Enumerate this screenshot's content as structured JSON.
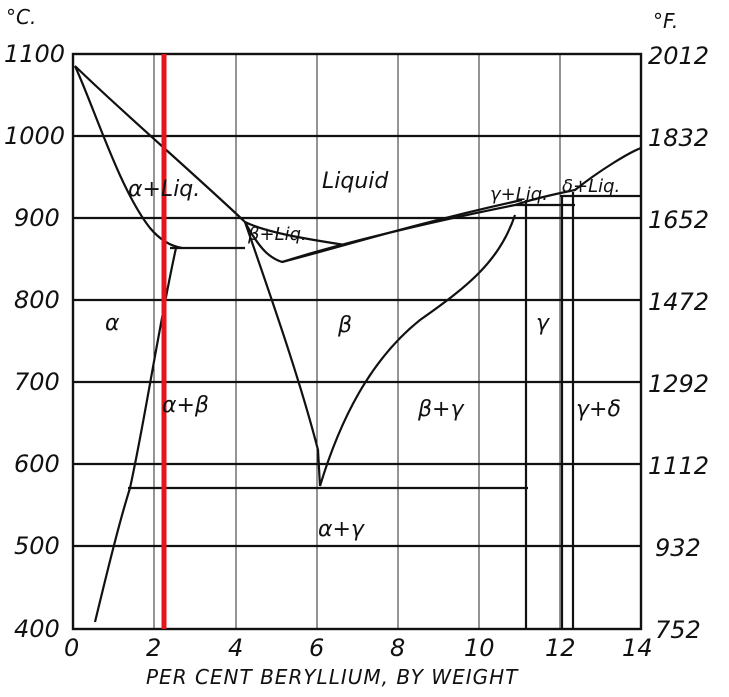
{
  "diagram": {
    "units": {
      "celsius": "°C.",
      "fahrenheit": "°F."
    },
    "y_ticks_c": [
      "1100",
      "1000",
      "900",
      "800",
      "700",
      "600",
      "500",
      "400"
    ],
    "y_ticks_f": [
      "2012",
      "1832",
      "1652",
      "1472",
      "1292",
      "1112",
      "932",
      "752"
    ],
    "x_ticks": [
      "0",
      "2",
      "4",
      "6",
      "8",
      "10",
      "12",
      "14"
    ],
    "x_label": "PER CENT BERYLLIUM, BY WEIGHT",
    "regions": {
      "liquid": "Liquid",
      "alpha_liq": "α+Liq.",
      "beta_liq": "β+Liq.",
      "gamma_liq": "γ+Liq.",
      "delta_liq": "δ+Liq.",
      "alpha": "α",
      "beta": "β",
      "gamma": "γ",
      "alpha_beta": "α+β",
      "beta_gamma": "β+γ",
      "gamma_delta": "γ+δ",
      "alpha_gamma": "α+γ"
    },
    "highlight_color": "#e8131b"
  }
}
